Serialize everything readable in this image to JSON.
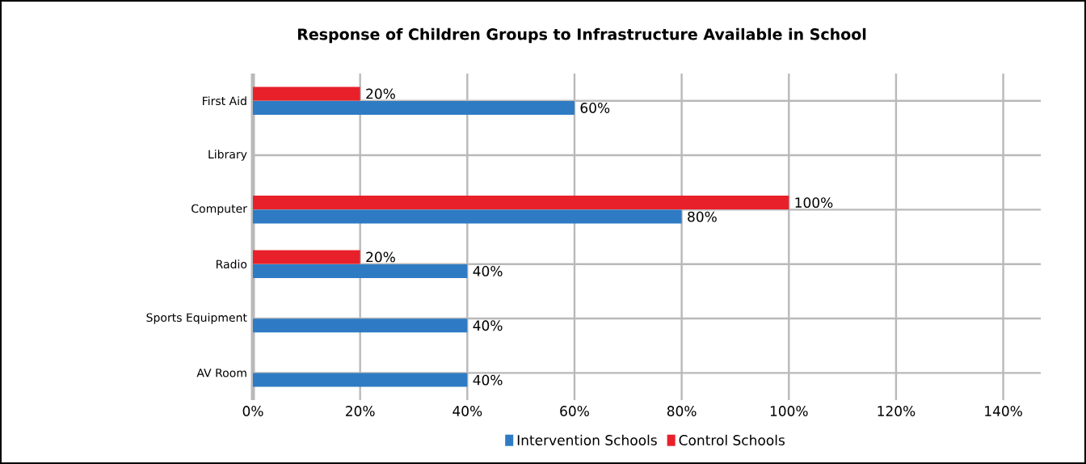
{
  "chart_data": {
    "type": "bar",
    "orientation": "horizontal",
    "title": "Response of Children Groups to Infrastructure Available in School",
    "categories": [
      "First Aid",
      "Library",
      "Computer",
      "Radio",
      "Sports Equipment",
      "AV  Room"
    ],
    "series": [
      {
        "name": "Intervention Schools",
        "color": "#2e7bc4",
        "values": [
          60,
          null,
          80,
          40,
          40,
          40
        ],
        "value_labels": [
          "60%",
          null,
          "80%",
          "40%",
          "40%",
          "40%"
        ]
      },
      {
        "name": "Control Schools",
        "color": "#e8202a",
        "values": [
          20,
          null,
          100,
          20,
          null,
          null
        ],
        "value_labels": [
          "20%",
          null,
          "100%",
          "20%",
          null,
          null
        ]
      }
    ],
    "xlim": [
      0,
      147
    ],
    "xticks": [
      {
        "value": 0,
        "label": "0%"
      },
      {
        "value": 20,
        "label": "20%"
      },
      {
        "value": 40,
        "label": "40%"
      },
      {
        "value": 60,
        "label": "60%"
      },
      {
        "value": 80,
        "label": "80%"
      },
      {
        "value": 100,
        "label": "100%"
      },
      {
        "value": 120,
        "label": "120%"
      },
      {
        "value": 140,
        "label": "140%"
      }
    ],
    "grid": true,
    "legend": "bottom"
  }
}
